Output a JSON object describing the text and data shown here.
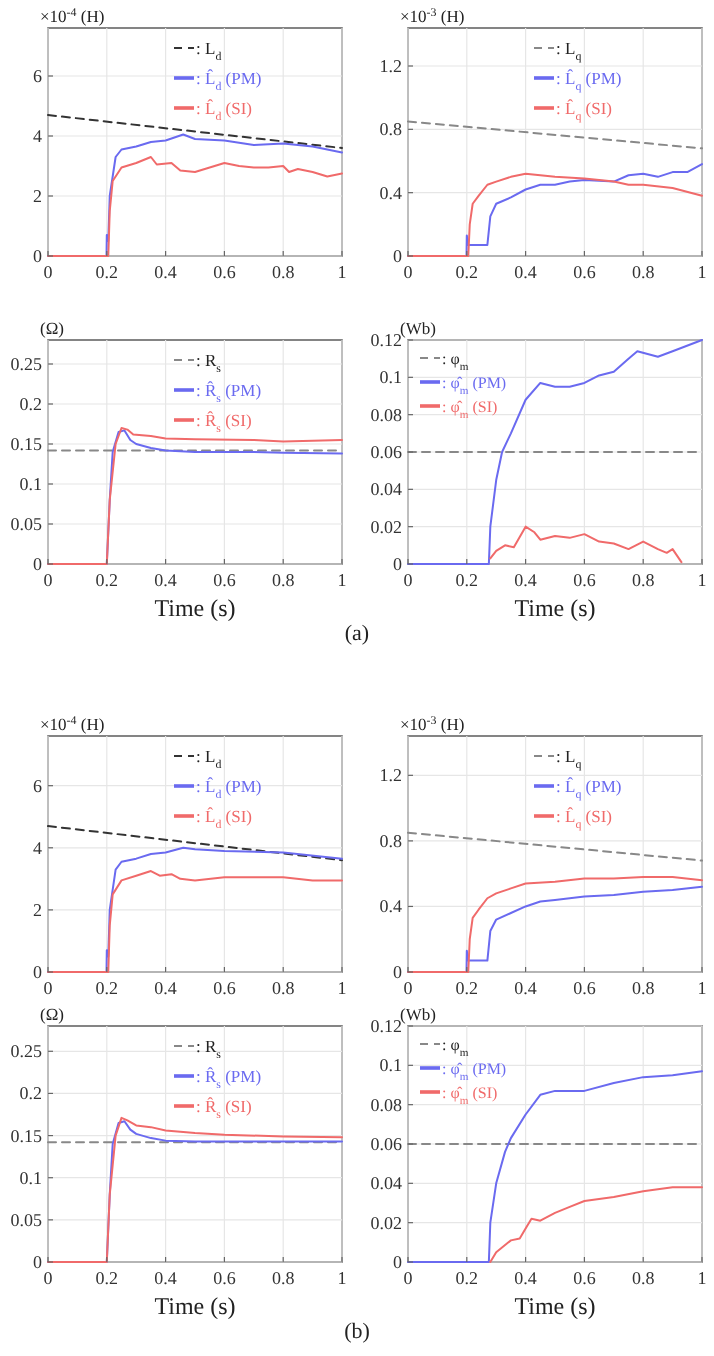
{
  "chart_data": [
    {
      "type": "line",
      "ylabel": "×10$^{-4}$ (H)",
      "xlim": [
        0,
        1
      ],
      "ylim": [
        0,
        7.6
      ],
      "xticks": [
        0,
        0.2,
        0.4,
        0.6,
        0.8,
        1
      ],
      "yticks": [
        0,
        2,
        4,
        6
      ],
      "grid": true,
      "legend": "top right",
      "series": [
        {
          "name": ": L$_{d}$",
          "color": "#333333",
          "line_style": "dashed",
          "x": [
            0,
            1
          ],
          "values": [
            4.7,
            3.6
          ]
        },
        {
          "name": ": L̂$_{d}$ (PM)",
          "color": "#6a6af0",
          "line_style": "solid",
          "x": [
            0,
            0.199,
            0.2,
            0.205,
            0.21,
            0.23,
            0.25,
            0.3,
            0.35,
            0.4,
            0.46,
            0.5,
            0.6,
            0.7,
            0.8,
            0.9,
            1
          ],
          "values": [
            0,
            0,
            0.7,
            0.5,
            2,
            3.3,
            3.55,
            3.65,
            3.8,
            3.85,
            4.05,
            3.9,
            3.85,
            3.7,
            3.75,
            3.65,
            3.45
          ]
        },
        {
          "name": ": L̂$_{d}$ (SI)",
          "color": "#f06a6a",
          "line_style": "solid",
          "x": [
            0,
            0.205,
            0.21,
            0.22,
            0.25,
            0.3,
            0.35,
            0.37,
            0.42,
            0.45,
            0.5,
            0.55,
            0.6,
            0.65,
            0.7,
            0.75,
            0.8,
            0.82,
            0.85,
            0.9,
            0.95,
            1
          ],
          "values": [
            0,
            0,
            1.5,
            2.5,
            2.95,
            3.1,
            3.3,
            3.05,
            3.1,
            2.85,
            2.8,
            2.95,
            3.1,
            3,
            2.95,
            2.95,
            3,
            2.8,
            2.9,
            2.8,
            2.65,
            2.75
          ]
        }
      ]
    },
    {
      "type": "line",
      "ylabel": "×10$^{-3}$ (H)",
      "xlim": [
        0,
        1
      ],
      "ylim": [
        0,
        1.44
      ],
      "xticks": [
        0,
        0.2,
        0.4,
        0.6,
        0.8,
        1
      ],
      "yticks": [
        0,
        0.4,
        0.8,
        1.2
      ],
      "grid": true,
      "legend": "top right",
      "series": [
        {
          "name": ": L$_{q}$",
          "color": "#888888",
          "line_style": "dashed",
          "x": [
            0,
            1
          ],
          "values": [
            0.85,
            0.68
          ]
        },
        {
          "name": ": L̂$_{q}$ (PM)",
          "color": "#6a6af0",
          "line_style": "solid",
          "x": [
            0,
            0.199,
            0.2,
            0.205,
            0.27,
            0.28,
            0.3,
            0.35,
            0.4,
            0.45,
            0.5,
            0.55,
            0.6,
            0.7,
            0.75,
            0.8,
            0.85,
            0.9,
            0.95,
            1
          ],
          "values": [
            0,
            0,
            0.13,
            0.07,
            0.07,
            0.25,
            0.33,
            0.37,
            0.42,
            0.45,
            0.45,
            0.47,
            0.48,
            0.47,
            0.51,
            0.52,
            0.5,
            0.53,
            0.53,
            0.58
          ]
        },
        {
          "name": ": L̂$_{q}$ (SI)",
          "color": "#f06a6a",
          "line_style": "solid",
          "x": [
            0,
            0.205,
            0.21,
            0.22,
            0.24,
            0.27,
            0.3,
            0.35,
            0.4,
            0.5,
            0.6,
            0.7,
            0.75,
            0.8,
            0.9,
            1
          ],
          "values": [
            0,
            0,
            0.2,
            0.33,
            0.38,
            0.45,
            0.47,
            0.5,
            0.52,
            0.5,
            0.49,
            0.47,
            0.45,
            0.45,
            0.43,
            0.38
          ]
        }
      ]
    },
    {
      "type": "line",
      "ylabel": "(Ω)",
      "xlabel": "Time (s)",
      "annotations": [
        "(a)"
      ],
      "xlim": [
        0,
        1
      ],
      "ylim": [
        0,
        0.28
      ],
      "xticks": [
        0,
        0.2,
        0.4,
        0.6,
        0.8,
        1
      ],
      "yticks": [
        0,
        0.05,
        0.1,
        0.15,
        0.2,
        0.25
      ],
      "grid": true,
      "legend": "top right",
      "series": [
        {
          "name": ": R$_{s}$",
          "color": "#888888",
          "line_style": "dashed",
          "x": [
            0,
            1
          ],
          "values": [
            0.142,
            0.142
          ]
        },
        {
          "name": ": R̂$_{s}$ (PM)",
          "color": "#6a6af0",
          "line_style": "solid",
          "x": [
            0,
            0.2,
            0.21,
            0.22,
            0.24,
            0.26,
            0.28,
            0.3,
            0.35,
            0.4,
            0.5,
            0.7,
            0.8,
            1
          ],
          "values": [
            0,
            0,
            0.08,
            0.14,
            0.165,
            0.167,
            0.155,
            0.15,
            0.145,
            0.142,
            0.14,
            0.14,
            0.139,
            0.138
          ]
        },
        {
          "name": ": R̂$_{s}$ (SI)",
          "color": "#f06a6a",
          "line_style": "solid",
          "x": [
            0,
            0.2,
            0.21,
            0.23,
            0.25,
            0.27,
            0.29,
            0.35,
            0.4,
            0.5,
            0.7,
            0.8,
            1
          ],
          "values": [
            0,
            0,
            0.08,
            0.15,
            0.17,
            0.168,
            0.162,
            0.16,
            0.157,
            0.156,
            0.155,
            0.153,
            0.155
          ]
        }
      ]
    },
    {
      "type": "line",
      "ylabel": "(Wb)",
      "xlabel": "Time (s)",
      "xlim": [
        0,
        1
      ],
      "ylim": [
        0,
        0.12
      ],
      "xticks": [
        0,
        0.2,
        0.4,
        0.6,
        0.8,
        1
      ],
      "yticks": [
        0,
        0.02,
        0.04,
        0.06,
        0.08,
        0.1,
        0.12
      ],
      "grid": true,
      "legend": "top left",
      "series": [
        {
          "name": ": φ$_{m}$",
          "color": "#888888",
          "line_style": "dashed",
          "x": [
            0,
            1
          ],
          "values": [
            0.06,
            0.06
          ]
        },
        {
          "name": ": φ̂$_{m}$ (PM)",
          "color": "#6a6af0",
          "line_style": "solid",
          "x": [
            0,
            0.275,
            0.28,
            0.3,
            0.32,
            0.35,
            0.4,
            0.45,
            0.5,
            0.55,
            0.6,
            0.65,
            0.7,
            0.75,
            0.78,
            0.85,
            0.9,
            1
          ],
          "values": [
            0,
            0,
            0.02,
            0.045,
            0.06,
            0.07,
            0.088,
            0.097,
            0.095,
            0.095,
            0.097,
            0.101,
            0.103,
            0.11,
            0.114,
            0.111,
            0.114,
            0.12
          ]
        },
        {
          "name": ": φ̂$_{m}$ (SI)",
          "color": "#f06a6a",
          "line_style": "solid",
          "x": [
            0.28,
            0.3,
            0.33,
            0.36,
            0.4,
            0.43,
            0.45,
            0.5,
            0.55,
            0.6,
            0.65,
            0.7,
            0.75,
            0.8,
            0.85,
            0.88,
            0.9,
            0.93
          ],
          "values": [
            0.003,
            0.007,
            0.01,
            0.009,
            0.02,
            0.017,
            0.013,
            0.015,
            0.014,
            0.016,
            0.012,
            0.011,
            0.008,
            0.012,
            0.008,
            0.006,
            0.008,
            0.001
          ]
        }
      ]
    },
    {
      "type": "line",
      "ylabel": "×10$^{-4}$ (H)",
      "xlim": [
        0,
        1
      ],
      "ylim": [
        0,
        7.6
      ],
      "xticks": [
        0,
        0.2,
        0.4,
        0.6,
        0.8,
        1
      ],
      "yticks": [
        0,
        2,
        4,
        6
      ],
      "grid": true,
      "legend": "top right",
      "series": [
        {
          "name": ": L$_{d}$",
          "color": "#333333",
          "line_style": "dashed",
          "x": [
            0,
            1
          ],
          "values": [
            4.7,
            3.6
          ]
        },
        {
          "name": ": L̂$_{d}$ (PM)",
          "color": "#6a6af0",
          "line_style": "solid",
          "x": [
            0,
            0.199,
            0.2,
            0.205,
            0.21,
            0.23,
            0.25,
            0.3,
            0.35,
            0.4,
            0.46,
            0.5,
            0.6,
            0.8,
            1
          ],
          "values": [
            0,
            0,
            0.7,
            0.5,
            2,
            3.3,
            3.55,
            3.65,
            3.8,
            3.85,
            4,
            3.95,
            3.9,
            3.85,
            3.65
          ]
        },
        {
          "name": ": L̂$_{d}$ (SI)",
          "color": "#f06a6a",
          "line_style": "solid",
          "x": [
            0,
            0.205,
            0.21,
            0.22,
            0.25,
            0.3,
            0.35,
            0.38,
            0.42,
            0.45,
            0.5,
            0.6,
            0.7,
            0.8,
            0.9,
            1
          ],
          "values": [
            0,
            0,
            1.5,
            2.5,
            2.95,
            3.1,
            3.25,
            3.1,
            3.15,
            3,
            2.95,
            3.05,
            3.05,
            3.05,
            2.95,
            2.95
          ]
        }
      ]
    },
    {
      "type": "line",
      "ylabel": "×10$^{-3}$ (H)",
      "xlim": [
        0,
        1
      ],
      "ylim": [
        0,
        1.44
      ],
      "xticks": [
        0,
        0.2,
        0.4,
        0.6,
        0.8,
        1
      ],
      "yticks": [
        0,
        0.4,
        0.8,
        1.2
      ],
      "grid": true,
      "legend": "top right",
      "series": [
        {
          "name": ": L$_{q}$",
          "color": "#888888",
          "line_style": "dashed",
          "x": [
            0,
            1
          ],
          "values": [
            0.85,
            0.68
          ]
        },
        {
          "name": ": L̂$_{q}$ (PM)",
          "color": "#6a6af0",
          "line_style": "solid",
          "x": [
            0,
            0.199,
            0.2,
            0.205,
            0.27,
            0.28,
            0.3,
            0.35,
            0.4,
            0.45,
            0.5,
            0.6,
            0.7,
            0.8,
            0.9,
            1
          ],
          "values": [
            0,
            0,
            0.13,
            0.07,
            0.07,
            0.25,
            0.32,
            0.36,
            0.4,
            0.43,
            0.44,
            0.46,
            0.47,
            0.49,
            0.5,
            0.52
          ]
        },
        {
          "name": ": L̂$_{q}$ (SI)",
          "color": "#f06a6a",
          "line_style": "solid",
          "x": [
            0,
            0.205,
            0.21,
            0.22,
            0.24,
            0.27,
            0.3,
            0.35,
            0.4,
            0.5,
            0.6,
            0.7,
            0.8,
            0.9,
            1
          ],
          "values": [
            0,
            0,
            0.2,
            0.33,
            0.38,
            0.45,
            0.48,
            0.51,
            0.54,
            0.55,
            0.57,
            0.57,
            0.58,
            0.58,
            0.56
          ]
        }
      ]
    },
    {
      "type": "line",
      "ylabel": "(Ω)",
      "xlabel": "Time (s)",
      "annotations": [
        "(b)"
      ],
      "xlim": [
        0,
        1
      ],
      "ylim": [
        0,
        0.28
      ],
      "xticks": [
        0,
        0.2,
        0.4,
        0.6,
        0.8,
        1
      ],
      "yticks": [
        0,
        0.05,
        0.1,
        0.15,
        0.2,
        0.25
      ],
      "grid": true,
      "legend": "top right",
      "series": [
        {
          "name": ": R$_{s}$",
          "color": "#888888",
          "line_style": "dashed",
          "x": [
            0,
            1
          ],
          "values": [
            0.142,
            0.142
          ]
        },
        {
          "name": ": R̂$_{s}$ (PM)",
          "color": "#6a6af0",
          "line_style": "solid",
          "x": [
            0,
            0.2,
            0.21,
            0.22,
            0.24,
            0.26,
            0.28,
            0.3,
            0.35,
            0.4,
            0.5,
            1
          ],
          "values": [
            0,
            0,
            0.08,
            0.14,
            0.165,
            0.167,
            0.157,
            0.152,
            0.147,
            0.144,
            0.143,
            0.143
          ]
        },
        {
          "name": ": R̂$_{s}$ (SI)",
          "color": "#f06a6a",
          "line_style": "solid",
          "x": [
            0,
            0.2,
            0.21,
            0.23,
            0.25,
            0.27,
            0.3,
            0.35,
            0.4,
            0.5,
            0.6,
            0.8,
            1
          ],
          "values": [
            0,
            0,
            0.08,
            0.15,
            0.171,
            0.168,
            0.162,
            0.16,
            0.156,
            0.153,
            0.151,
            0.149,
            0.148
          ]
        }
      ]
    },
    {
      "type": "line",
      "ylabel": "(Wb)",
      "xlabel": "Time (s)",
      "xlim": [
        0,
        1
      ],
      "ylim": [
        0,
        0.12
      ],
      "xticks": [
        0,
        0.2,
        0.4,
        0.6,
        0.8,
        1
      ],
      "yticks": [
        0,
        0.02,
        0.04,
        0.06,
        0.08,
        0.1,
        0.12
      ],
      "grid": true,
      "legend": "top left",
      "series": [
        {
          "name": ": φ$_{m}$",
          "color": "#888888",
          "line_style": "dashed",
          "x": [
            0,
            1
          ],
          "values": [
            0.06,
            0.06
          ]
        },
        {
          "name": ": φ̂$_{m}$ (PM)",
          "color": "#6a6af0",
          "line_style": "solid",
          "x": [
            0,
            0.275,
            0.28,
            0.3,
            0.33,
            0.35,
            0.4,
            0.45,
            0.5,
            0.6,
            0.7,
            0.8,
            0.9,
            1
          ],
          "values": [
            0,
            0,
            0.02,
            0.04,
            0.056,
            0.063,
            0.075,
            0.085,
            0.087,
            0.087,
            0.091,
            0.094,
            0.095,
            0.097
          ]
        },
        {
          "name": ": φ̂$_{m}$ (SI)",
          "color": "#f06a6a",
          "line_style": "solid",
          "x": [
            0.28,
            0.3,
            0.35,
            0.38,
            0.4,
            0.42,
            0.45,
            0.5,
            0.55,
            0.6,
            0.7,
            0.8,
            0.9,
            1
          ],
          "values": [
            0,
            0.005,
            0.011,
            0.012,
            0.017,
            0.022,
            0.021,
            0.025,
            0.028,
            0.031,
            0.033,
            0.036,
            0.038,
            0.038
          ]
        }
      ]
    }
  ]
}
